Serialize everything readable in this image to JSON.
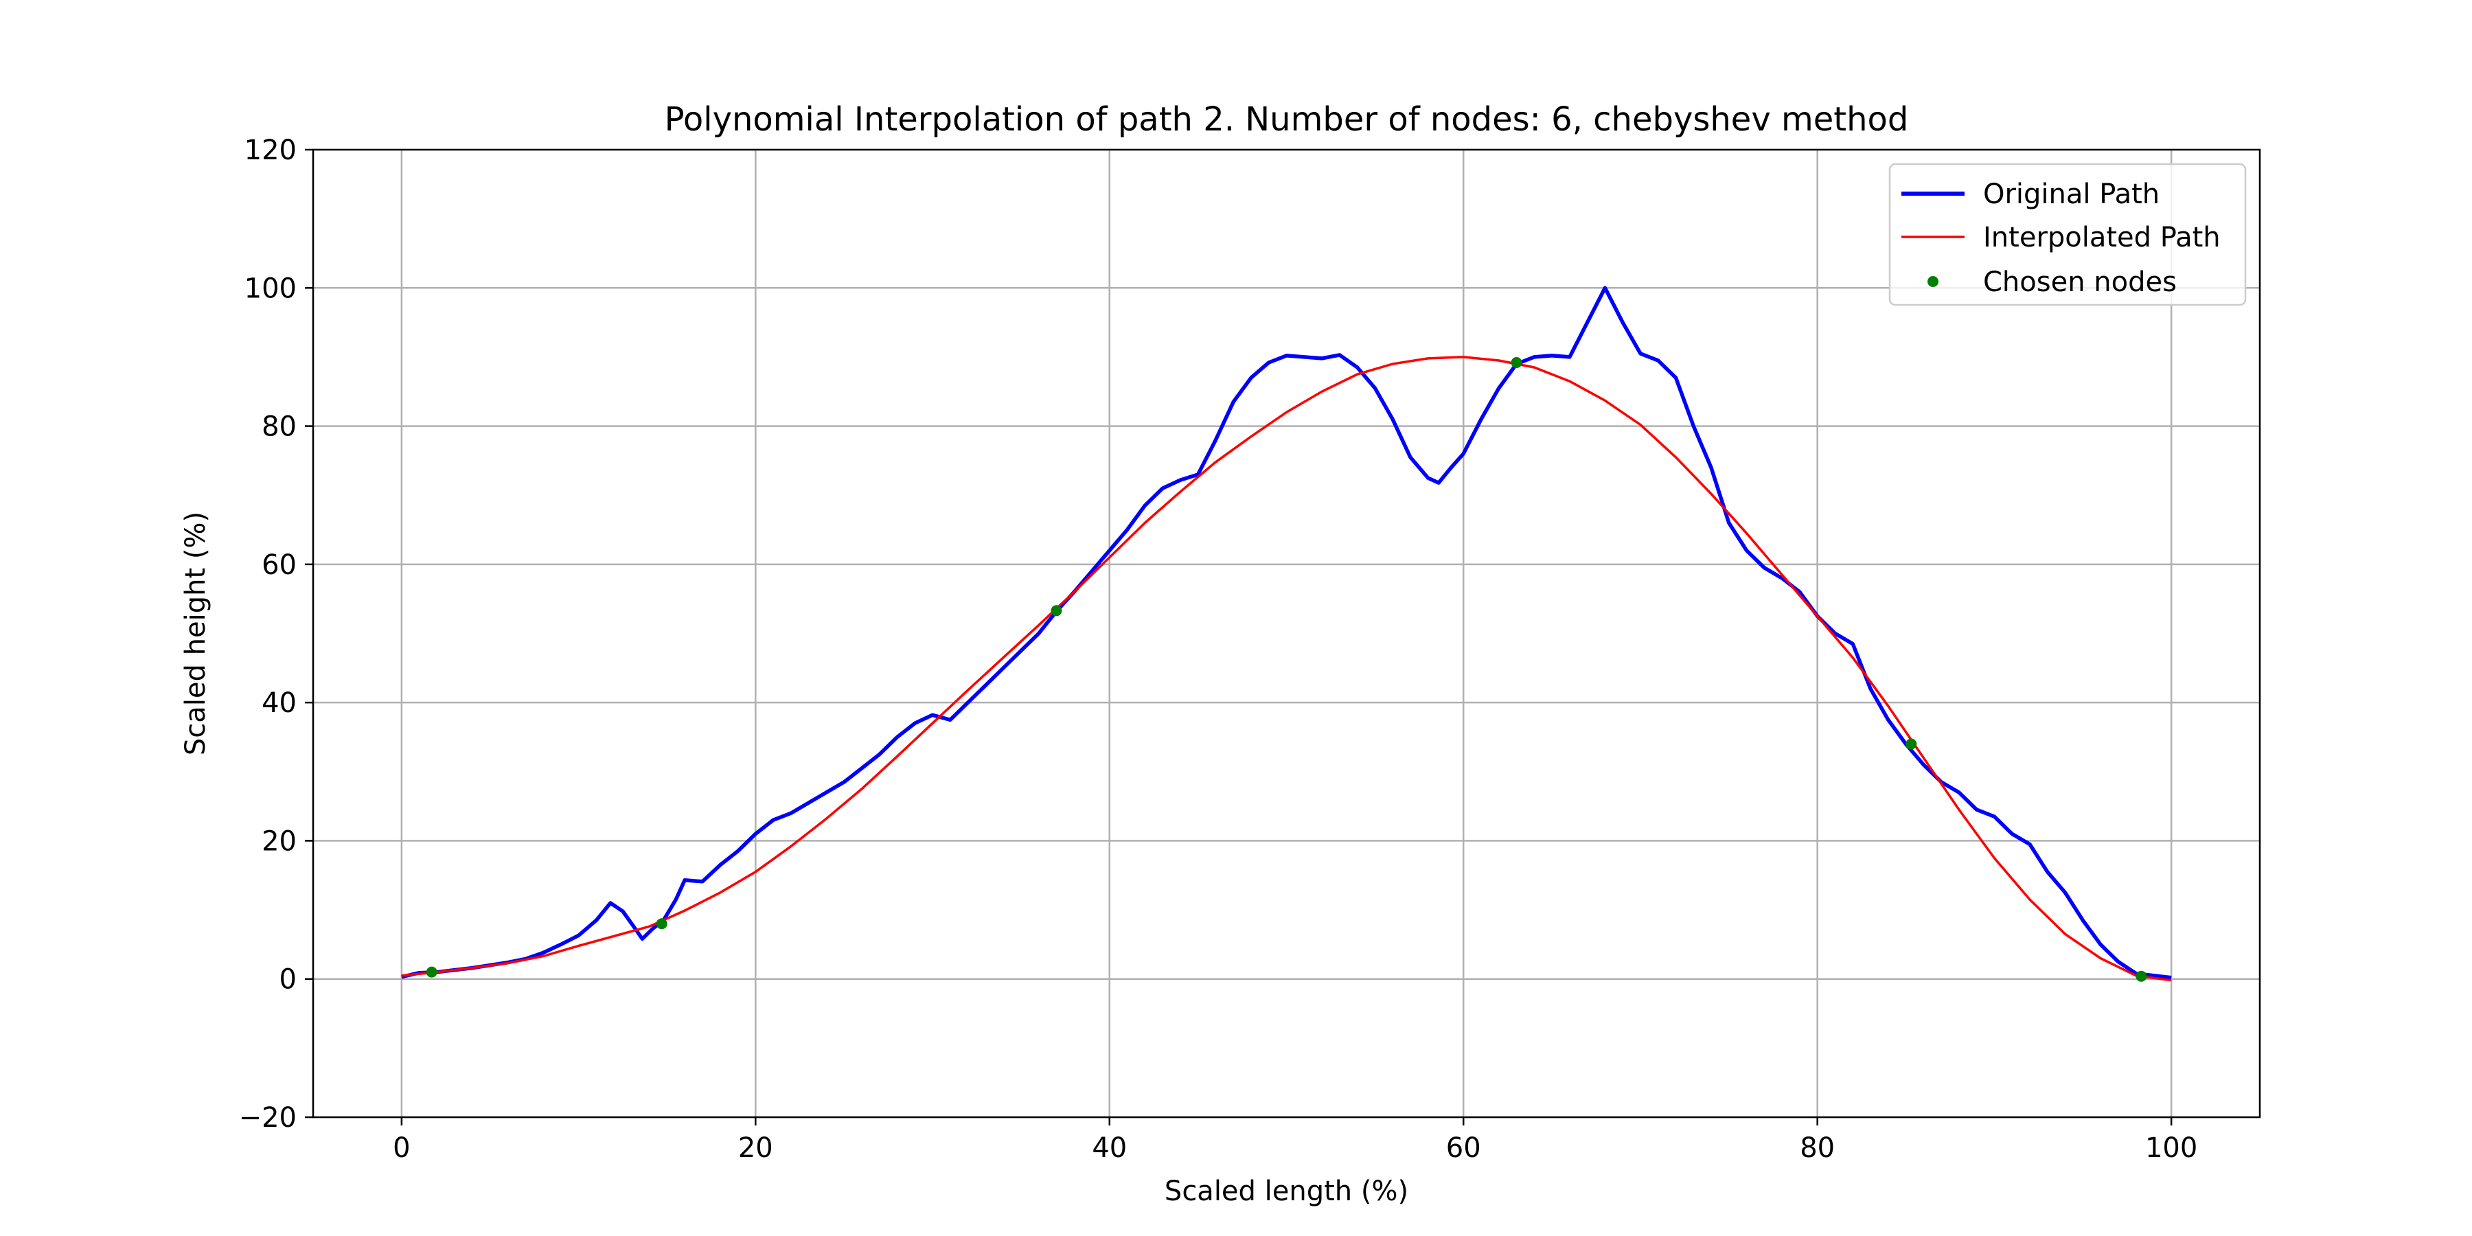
{
  "chart_data": {
    "type": "line",
    "title": "Polynomial Interpolation of path 2. Number of nodes: 6, chebyshev method",
    "xlabel": "Scaled length (%)",
    "ylabel": "Scaled height (%)",
    "xlim": [
      -5,
      105
    ],
    "ylim": [
      -20,
      120
    ],
    "xticks": [
      0,
      20,
      40,
      60,
      80,
      100
    ],
    "yticks": [
      -20,
      0,
      20,
      40,
      60,
      80,
      100,
      120
    ],
    "grid": true,
    "legend": {
      "position": "top-right",
      "entries": [
        "Original Path",
        "Interpolated Path",
        "Chosen nodes"
      ]
    },
    "colors": {
      "original": "#0000ff",
      "interpolated": "#ff0000",
      "nodes": "#008000",
      "grid": "#b0b0b0"
    },
    "series": [
      {
        "name": "Original Path",
        "kind": "line",
        "points": [
          [
            0,
            0.3
          ],
          [
            1,
            0.9
          ],
          [
            2,
            1.0
          ],
          [
            3,
            1.3
          ],
          [
            4,
            1.6
          ],
          [
            5,
            2.0
          ],
          [
            6,
            2.4
          ],
          [
            7,
            2.9
          ],
          [
            8,
            3.8
          ],
          [
            9,
            5.0
          ],
          [
            10,
            6.3
          ],
          [
            11,
            8.5
          ],
          [
            11.8,
            11.0
          ],
          [
            12.5,
            9.8
          ],
          [
            13,
            8.0
          ],
          [
            13.6,
            5.8
          ],
          [
            14.2,
            7.3
          ],
          [
            14.8,
            8.5
          ],
          [
            15.5,
            11.5
          ],
          [
            16,
            14.3
          ],
          [
            17,
            14.1
          ],
          [
            18,
            16.5
          ],
          [
            19,
            18.5
          ],
          [
            20,
            21.0
          ],
          [
            21,
            23.0
          ],
          [
            22,
            24.0
          ],
          [
            23,
            25.5
          ],
          [
            24,
            27.0
          ],
          [
            25,
            28.5
          ],
          [
            26,
            30.5
          ],
          [
            27,
            32.5
          ],
          [
            28,
            35.0
          ],
          [
            29,
            37.0
          ],
          [
            30,
            38.2
          ],
          [
            31,
            37.5
          ],
          [
            32,
            40.0
          ],
          [
            33,
            42.5
          ],
          [
            34,
            45.0
          ],
          [
            35,
            47.5
          ],
          [
            36,
            50.0
          ],
          [
            37,
            53.2
          ],
          [
            38,
            56.0
          ],
          [
            39,
            59.0
          ],
          [
            40,
            62.0
          ],
          [
            41,
            65.0
          ],
          [
            42,
            68.5
          ],
          [
            43,
            71.0
          ],
          [
            44,
            72.2
          ],
          [
            45,
            73.0
          ],
          [
            46,
            78.0
          ],
          [
            47,
            83.5
          ],
          [
            48,
            87.0
          ],
          [
            49,
            89.2
          ],
          [
            50,
            90.2
          ],
          [
            51,
            90.0
          ],
          [
            52,
            89.8
          ],
          [
            53,
            90.3
          ],
          [
            54,
            88.5
          ],
          [
            55,
            85.5
          ],
          [
            56,
            81.0
          ],
          [
            57,
            75.5
          ],
          [
            58,
            72.5
          ],
          [
            58.6,
            71.8
          ],
          [
            59.3,
            74.0
          ],
          [
            60,
            76.0
          ],
          [
            61,
            81.0
          ],
          [
            62,
            85.5
          ],
          [
            63,
            89.0
          ],
          [
            64,
            90.0
          ],
          [
            65,
            90.2
          ],
          [
            66,
            90.0
          ],
          [
            67,
            95.0
          ],
          [
            68,
            100.0
          ],
          [
            69,
            95.0
          ],
          [
            70,
            90.5
          ],
          [
            71,
            89.5
          ],
          [
            72,
            87.0
          ],
          [
            73,
            80.0
          ],
          [
            74,
            74.0
          ],
          [
            75,
            66.0
          ],
          [
            76,
            62.0
          ],
          [
            77,
            59.5
          ],
          [
            78,
            58.0
          ],
          [
            79,
            56.0
          ],
          [
            80,
            52.5
          ],
          [
            81,
            50.0
          ],
          [
            82,
            48.5
          ],
          [
            83,
            42.0
          ],
          [
            84,
            37.5
          ],
          [
            85,
            34.0
          ],
          [
            86,
            31.0
          ],
          [
            87,
            28.5
          ],
          [
            88,
            27.0
          ],
          [
            89,
            24.5
          ],
          [
            90,
            23.5
          ],
          [
            91,
            21.0
          ],
          [
            92,
            19.5
          ],
          [
            93,
            15.5
          ],
          [
            94,
            12.5
          ],
          [
            95,
            8.5
          ],
          [
            96,
            5.0
          ],
          [
            97,
            2.5
          ],
          [
            98,
            0.8
          ],
          [
            99,
            0.5
          ],
          [
            100,
            0.2
          ]
        ]
      },
      {
        "name": "Interpolated Path",
        "kind": "line",
        "points": [
          [
            0,
            0.5
          ],
          [
            2,
            1.0
          ],
          [
            4,
            1.6
          ],
          [
            6,
            2.3
          ],
          [
            8,
            3.3
          ],
          [
            10,
            4.8
          ],
          [
            12,
            6.2
          ],
          [
            14,
            7.6
          ],
          [
            16,
            9.9
          ],
          [
            18,
            12.5
          ],
          [
            20,
            15.5
          ],
          [
            22,
            19.2
          ],
          [
            24,
            23.2
          ],
          [
            26,
            27.5
          ],
          [
            28,
            32.2
          ],
          [
            30,
            37.0
          ],
          [
            32,
            41.8
          ],
          [
            34,
            46.5
          ],
          [
            36,
            51.2
          ],
          [
            38,
            56.0
          ],
          [
            40,
            61.0
          ],
          [
            42,
            66.0
          ],
          [
            44,
            70.5
          ],
          [
            46,
            74.8
          ],
          [
            48,
            78.5
          ],
          [
            50,
            82.0
          ],
          [
            52,
            85.0
          ],
          [
            54,
            87.5
          ],
          [
            56,
            89.0
          ],
          [
            58,
            89.8
          ],
          [
            60,
            90.0
          ],
          [
            62,
            89.5
          ],
          [
            64,
            88.5
          ],
          [
            66,
            86.5
          ],
          [
            68,
            83.7
          ],
          [
            70,
            80.2
          ],
          [
            72,
            75.5
          ],
          [
            74,
            70.2
          ],
          [
            76,
            64.5
          ],
          [
            78,
            58.5
          ],
          [
            80,
            52.5
          ],
          [
            82,
            46.5
          ],
          [
            84,
            39.5
          ],
          [
            86,
            32.0
          ],
          [
            88,
            24.5
          ],
          [
            90,
            17.5
          ],
          [
            92,
            11.5
          ],
          [
            94,
            6.5
          ],
          [
            96,
            3.0
          ],
          [
            98,
            0.5
          ],
          [
            100,
            -0.2
          ]
        ]
      },
      {
        "name": "Chosen nodes",
        "kind": "scatter",
        "points": [
          [
            1.7,
            1.0
          ],
          [
            14.7,
            8.0
          ],
          [
            37.0,
            53.3
          ],
          [
            63.0,
            89.2
          ],
          [
            85.3,
            34.0
          ],
          [
            98.3,
            0.4
          ]
        ]
      }
    ]
  }
}
